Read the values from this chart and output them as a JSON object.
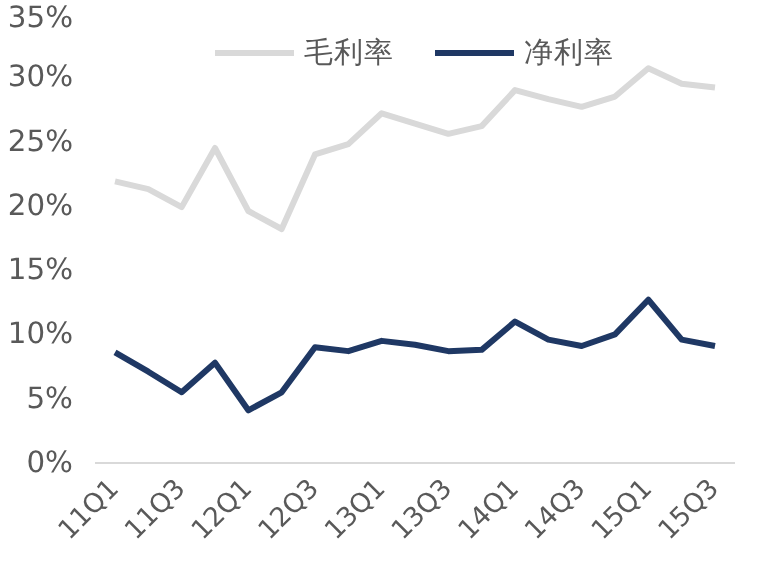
{
  "chart_data": {
    "type": "line",
    "categories": [
      "11Q1",
      null,
      "11Q3",
      null,
      "12Q1",
      null,
      "12Q3",
      null,
      "13Q1",
      null,
      "13Q3",
      null,
      "14Q1",
      null,
      "14Q3",
      null,
      "15Q1",
      null,
      "15Q3"
    ],
    "series": [
      {
        "name": "毛利率",
        "color": "#d9d9d9",
        "values": [
          21.9,
          21.3,
          19.9,
          24.5,
          19.6,
          18.2,
          24.0,
          24.8,
          27.2,
          26.4,
          25.6,
          26.2,
          29.0,
          28.3,
          27.7,
          28.5,
          30.7,
          29.5,
          29.2
        ]
      },
      {
        "name": "净利率",
        "color": "#1f3864",
        "values": [
          8.6,
          7.1,
          5.5,
          7.8,
          4.1,
          5.5,
          9.0,
          8.7,
          9.5,
          9.2,
          8.7,
          8.8,
          11.0,
          9.6,
          9.1,
          10.0,
          12.7,
          9.6,
          9.1
        ]
      }
    ],
    "ylim": [
      0,
      35
    ],
    "yticks": [
      {
        "value": 0,
        "label": "0%"
      },
      {
        "value": 5,
        "label": "5%"
      },
      {
        "value": 10,
        "label": "10%"
      },
      {
        "value": 15,
        "label": "15%"
      },
      {
        "value": 20,
        "label": "20%"
      },
      {
        "value": 25,
        "label": "25%"
      },
      {
        "value": 30,
        "label": "30%"
      },
      {
        "value": 35,
        "label": "35%"
      }
    ],
    "grid": false,
    "legend": "top"
  }
}
